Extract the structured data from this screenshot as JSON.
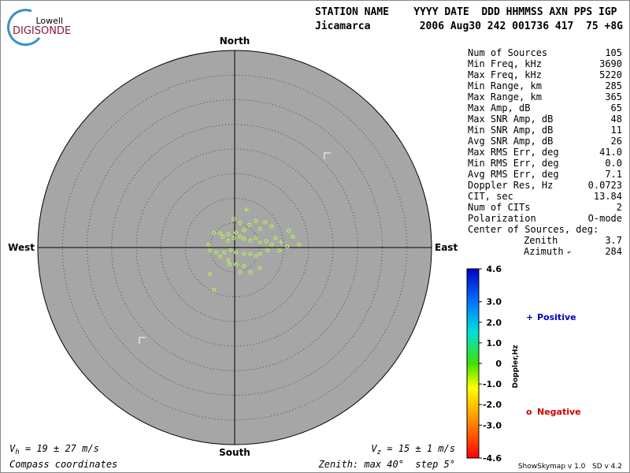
{
  "header": {
    "logo_top": "Lowell",
    "logo_bottom": "DIGISONDE",
    "columns_line": "STATION NAME    YYYY DATE  DDD HHMMSS AXN PPS IGP",
    "station": "Jicamarca",
    "values_line": "2006 Aug30 242 001736 417  75 +8G"
  },
  "compass": {
    "north": "North",
    "south": "South",
    "east": "East",
    "west": "West"
  },
  "skymap": {
    "zenith_max": 40,
    "ring_step": 5,
    "point_color": "#b8ff4a",
    "points": [
      [
        -0.2,
        5.8
      ],
      [
        1.1,
        5.0
      ],
      [
        3.0,
        4.6
      ],
      [
        4.3,
        5.4
      ],
      [
        6.2,
        5.1
      ],
      [
        7.5,
        4.3
      ],
      [
        5.1,
        3.8
      ],
      [
        1.9,
        3.5
      ],
      [
        0.3,
        3.0
      ],
      [
        -1.3,
        2.7
      ],
      [
        -2.9,
        2.9
      ],
      [
        -4.2,
        3.0
      ],
      [
        -2.4,
        2.2
      ],
      [
        -1.3,
        1.4
      ],
      [
        -0.2,
        1.9
      ],
      [
        1.1,
        2.2
      ],
      [
        1.9,
        1.8
      ],
      [
        3.2,
        1.4
      ],
      [
        4.3,
        1.9
      ],
      [
        5.1,
        1.0
      ],
      [
        6.4,
        1.3
      ],
      [
        7.5,
        0.6
      ],
      [
        8.3,
        1.9
      ],
      [
        11.0,
        3.4
      ],
      [
        11.8,
        2.2
      ],
      [
        13.1,
        0.6
      ],
      [
        10.7,
        0.2
      ],
      [
        9.1,
        -0.6
      ],
      [
        6.7,
        -0.6
      ],
      [
        5.1,
        -1.3
      ],
      [
        4.3,
        -1.8
      ],
      [
        3.2,
        -1.3
      ],
      [
        1.9,
        -1.3
      ],
      [
        0.3,
        -1.0
      ],
      [
        -0.8,
        -0.5
      ],
      [
        -2.1,
        -1.0
      ],
      [
        -3.7,
        -1.0
      ],
      [
        -5.0,
        -0.6
      ],
      [
        -5.3,
        0.6
      ],
      [
        -2.9,
        -1.8
      ],
      [
        -1.3,
        -2.6
      ],
      [
        0.3,
        -3.4
      ],
      [
        1.9,
        -3.8
      ],
      [
        3.2,
        -5.0
      ],
      [
        1.1,
        -5.0
      ],
      [
        -1.0,
        -3.4
      ],
      [
        5.1,
        -4.2
      ],
      [
        -5.0,
        -5.4
      ],
      [
        -4.2,
        -8.6
      ]
    ],
    "positive_points": [
      [
        2.4,
        7.7
      ],
      [
        9.4,
        1.1
      ]
    ]
  },
  "stats": {
    "rows": [
      [
        "Num of Sources",
        "105"
      ],
      [
        "Min Freq, kHz",
        "3690"
      ],
      [
        "Max Freq, kHz",
        "5220"
      ],
      [
        "Min Range, km",
        "285"
      ],
      [
        "Max Range, km",
        "365"
      ],
      [
        "Max Amp, dB",
        "65"
      ],
      [
        "Max SNR Amp, dB",
        "48"
      ],
      [
        "Min SNR Amp, dB",
        "11"
      ],
      [
        "Avg SNR Amp, dB",
        "26"
      ],
      [
        "Max RMS Err, deg",
        "41.0"
      ],
      [
        "Min RMS Err, deg",
        "0.0"
      ],
      [
        "Avg RMS Err, deg",
        "7.1"
      ],
      [
        "Doppler Res, Hz",
        "0.0723"
      ],
      [
        "CIT, sec",
        "13.84"
      ],
      [
        "Num of CITs",
        "2"
      ],
      [
        "Polarization",
        "O-mode"
      ]
    ],
    "center_label": "Center of Sources, deg:",
    "center_rows": [
      [
        "Zenith",
        "3.7"
      ],
      [
        "Azimuth",
        "284"
      ]
    ]
  },
  "colorbar": {
    "label": "Doppler,Hz",
    "lim": [
      -4.6,
      4.6
    ],
    "ticks": [
      4.6,
      {
        "value": 3,
        "label": "3.0"
      },
      {
        "value": 2,
        "label": "2.0"
      },
      {
        "value": 1,
        "label": "1.0"
      },
      0,
      {
        "value": -1,
        "label": "-1.0"
      },
      {
        "value": -2,
        "label": "-2.0"
      },
      {
        "value": -3,
        "label": "-3.0"
      },
      -4.6
    ]
  },
  "legend": {
    "positive": "Positive",
    "negative": "Negative"
  },
  "footer": {
    "vh_symbol": "V",
    "vh_sub": "h",
    "vh_text": " = 19 ± 27 m/s",
    "vz_symbol": "V",
    "vz_sub": "z",
    "vz_text": " = 15 ± 1 m/s",
    "coords": "Compass coordinates",
    "zenith_prefix": "Zenith: max ",
    "zenith_mid": "°  step ",
    "zenith_suffix": "°",
    "version": "ShowSkymap v 1.0   SD v 4.2"
  }
}
